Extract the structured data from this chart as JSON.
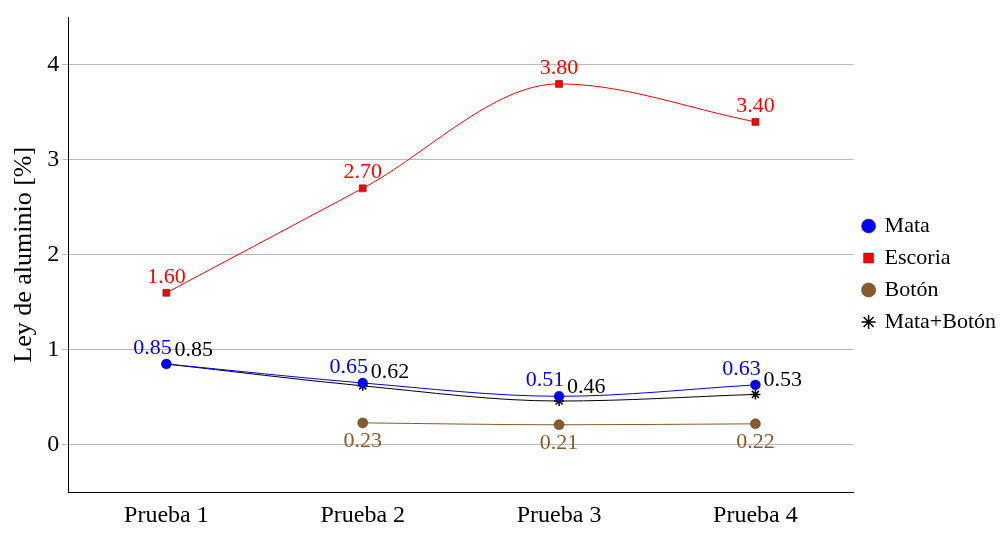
{
  "chart_data": {
    "type": "line",
    "ylabel": "Ley de aluminio [%]",
    "categories": [
      "Prueba 1",
      "Prueba 2",
      "Prueba 3",
      "Prueba 4"
    ],
    "series": [
      {
        "name": "Mata",
        "color": "#0000ff",
        "marker": "circle",
        "values": [
          0.85,
          0.65,
          0.51,
          0.63
        ],
        "value_labels": [
          "0.85",
          "0.65",
          "0.51",
          "0.63"
        ]
      },
      {
        "name": "Escoria",
        "color": "#ff0000",
        "marker": "square",
        "values": [
          1.6,
          2.7,
          3.8,
          3.4
        ],
        "value_labels": [
          "1.60",
          "2.70",
          "3.80",
          "3.40"
        ]
      },
      {
        "name": "Botón",
        "color": "#8b5a2b",
        "marker": "circle",
        "values": [
          null,
          0.23,
          0.21,
          0.22
        ],
        "value_labels": [
          null,
          "0.23",
          "0.21",
          "0.22"
        ]
      },
      {
        "name": "Mata+Botón",
        "color": "#000000",
        "marker": "cross",
        "values": [
          0.85,
          0.62,
          0.46,
          0.53
        ],
        "value_labels": [
          "0.85",
          "0.62",
          "0.46",
          "0.53"
        ]
      }
    ],
    "ylim": [
      -0.5,
      4.5
    ],
    "yticks": [
      0,
      1,
      2,
      3,
      4
    ],
    "grid": "y",
    "legend": "right"
  }
}
